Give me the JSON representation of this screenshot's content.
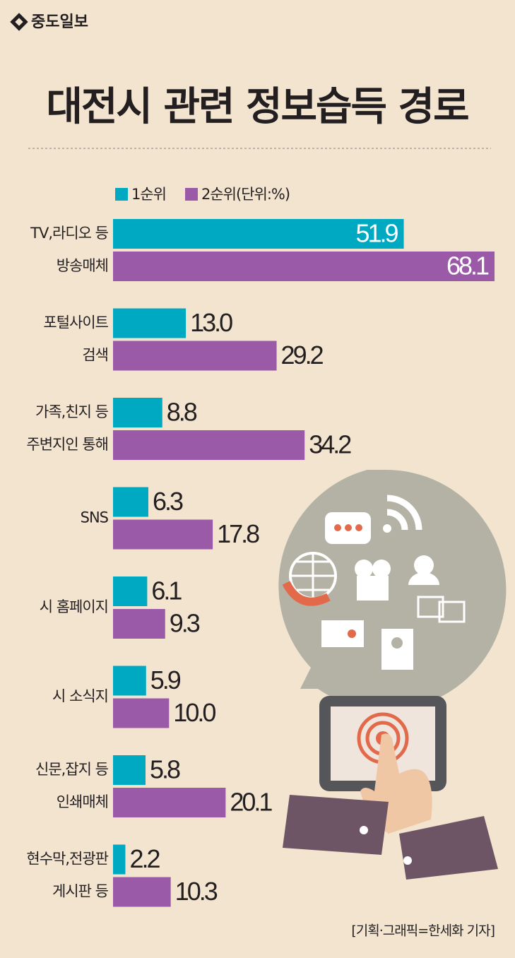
{
  "header": {
    "logo": "중도일보"
  },
  "chart_data": {
    "type": "grouped-hbar",
    "title": "대전시 관련 정보습득 경로",
    "unit_note": "(단위:%)",
    "categories": [
      [
        "TV,라디오 등",
        "방송매체"
      ],
      [
        "포털사이트",
        "검색"
      ],
      [
        "가족,친지 등",
        "주변지인 통해"
      ],
      [
        "SNS"
      ],
      [
        "시 홈페이지"
      ],
      [
        "시 소식지"
      ],
      [
        "신문,잡지 등",
        "인쇄매체"
      ],
      [
        "현수막,전광판",
        "게시판 등"
      ]
    ],
    "series": [
      {
        "name": "1순위",
        "color": "#00a9c2",
        "values": [
          51.9,
          13.0,
          8.8,
          6.3,
          6.1,
          5.9,
          5.8,
          2.2
        ],
        "value_labels": [
          "51.9",
          "13.0",
          "8.8",
          "6.3",
          "6.1",
          "5.9",
          "5.8",
          "2.2"
        ]
      },
      {
        "name": "2순위",
        "color": "#9a5aa8",
        "values": [
          68.1,
          29.2,
          34.2,
          17.8,
          9.3,
          10.0,
          20.1,
          10.3
        ],
        "value_labels": [
          "68.1",
          "29.2",
          "34.2",
          "17.8",
          "9.3",
          "10.0",
          "20.1",
          "10.3"
        ]
      }
    ]
  },
  "footer": {
    "credit": "[기획·그래픽=한세화 기자]"
  }
}
